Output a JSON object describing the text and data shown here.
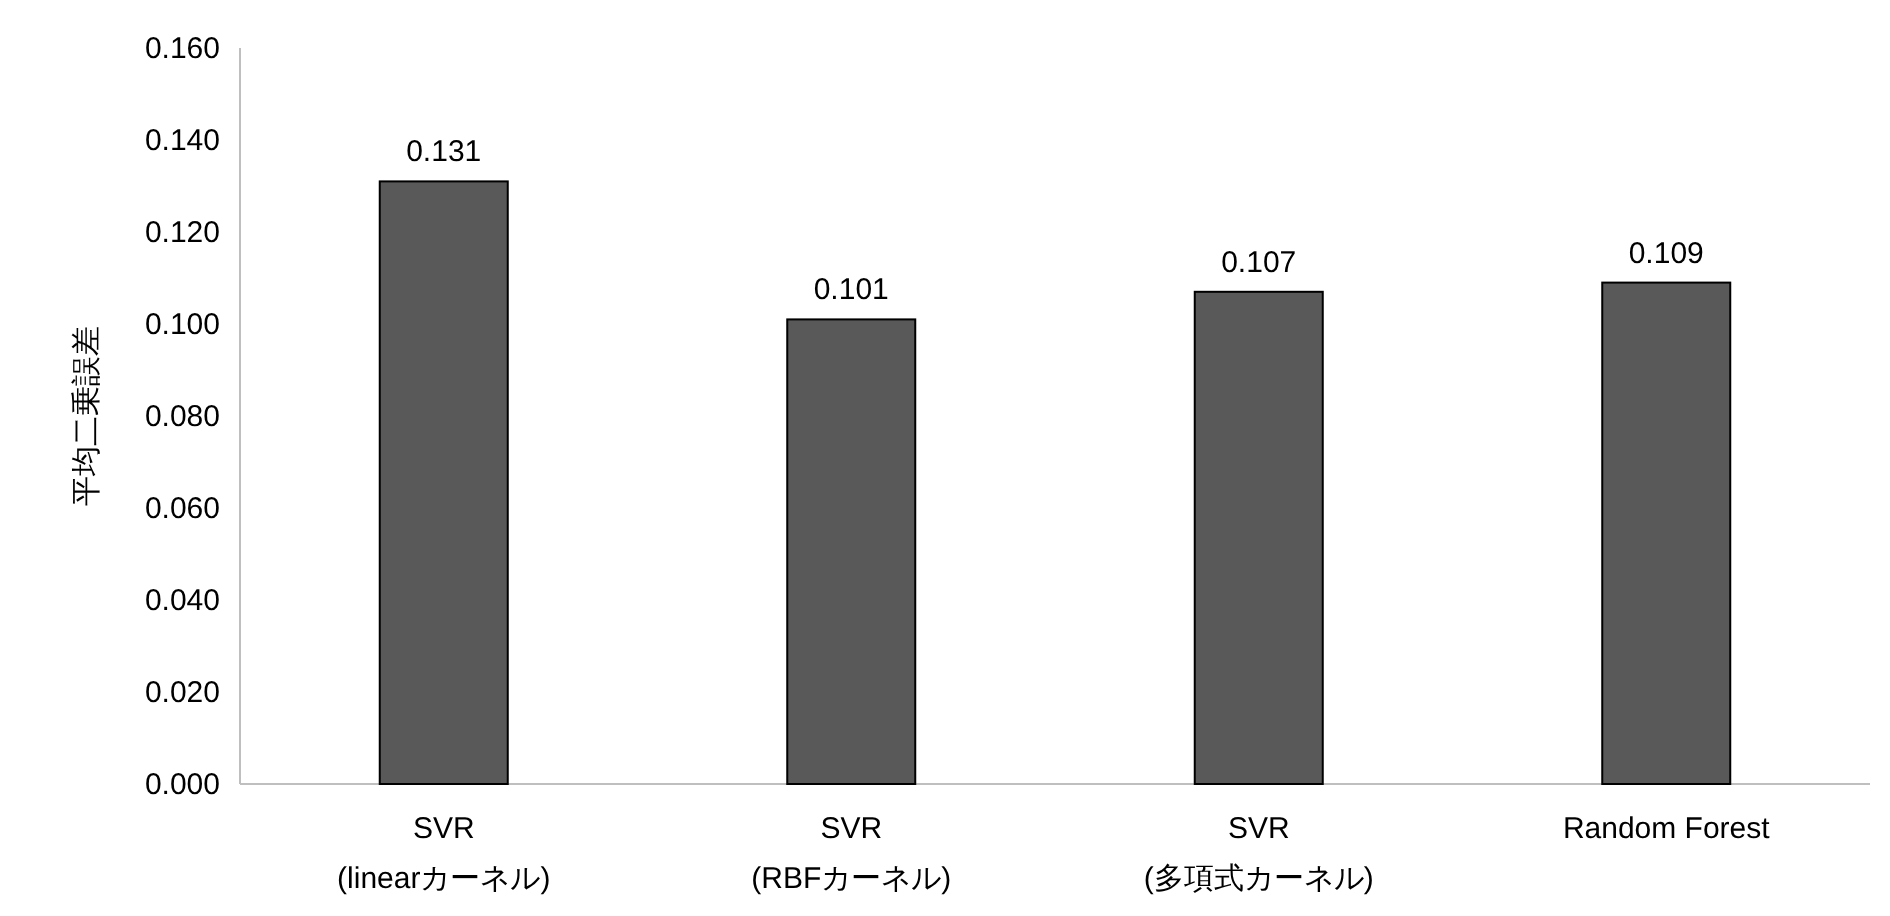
{
  "chart_data": {
    "type": "bar",
    "ylabel": "平均二乗誤差",
    "categories": [
      "SVR\n(linearカーネル)",
      "SVR\n(RBFカーネル)",
      "SVR\n(多項式カーネル)",
      "Random Forest"
    ],
    "values": [
      0.131,
      0.101,
      0.107,
      0.109
    ],
    "color": "#595959",
    "data_labels": true,
    "ylim": [
      0,
      0.16
    ],
    "yticks": [
      {
        "value": 0,
        "label": "0.000"
      },
      {
        "value": 0.02,
        "label": "0.020"
      },
      {
        "value": 0.04,
        "label": "0.040"
      },
      {
        "value": 0.06,
        "label": "0.060"
      },
      {
        "value": 0.08,
        "label": "0.080"
      },
      {
        "value": 0.1,
        "label": "0.100"
      },
      {
        "value": 0.12,
        "label": "0.120"
      },
      {
        "value": 0.14,
        "label": "0.140"
      },
      {
        "value": 0.16,
        "label": "0.160"
      }
    ]
  }
}
